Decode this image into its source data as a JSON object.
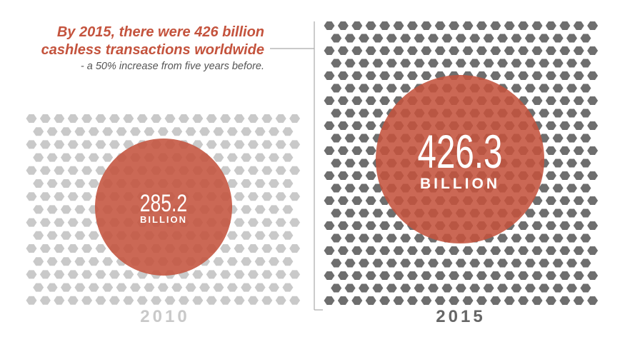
{
  "headline": {
    "line1": "By 2015, there were 426 billion",
    "line2": "cashless transactions worldwide",
    "sub": "- a 50% increase from five years before."
  },
  "colors": {
    "accent": "#c4533d",
    "hex_2010": "#c9c9c9",
    "hex_2015": "#6e6e6e"
  },
  "chart_data": {
    "type": "bar",
    "categories": [
      "2010",
      "2015"
    ],
    "series": [
      {
        "values": [
          285.2,
          426.3
        ]
      }
    ],
    "unit_label": "BILLION",
    "value_labels": [
      "285.2",
      "426.3"
    ]
  }
}
